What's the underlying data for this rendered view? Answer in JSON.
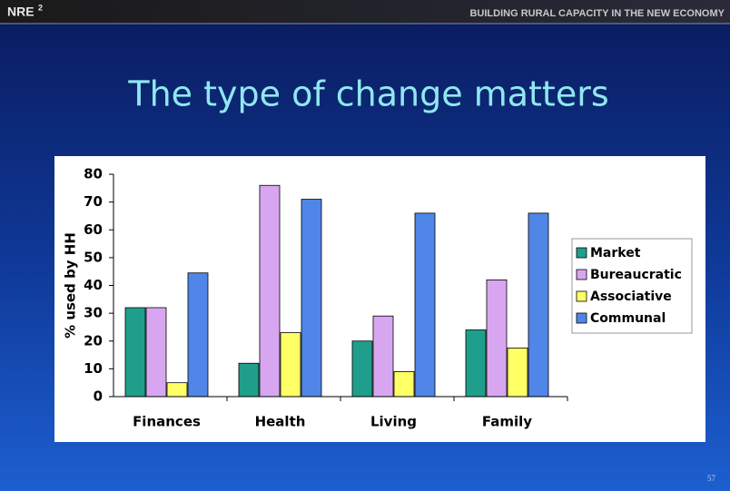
{
  "header": {
    "logo": "NRE",
    "logo_sup": "2",
    "tagline": "BUILDING RURAL CAPACITY IN THE NEW ECONOMY"
  },
  "title": "The type of change matters",
  "page_number": "57",
  "chart_data": {
    "type": "bar",
    "ylabel": "% used by HH",
    "categories": [
      "Finances",
      "Health",
      "Living",
      "Family"
    ],
    "series": [
      {
        "name": "Market",
        "color": "#1f9e8c",
        "values": [
          32,
          12,
          20,
          24
        ]
      },
      {
        "name": "Bureaucratic",
        "color": "#d8a6f0",
        "values": [
          32,
          76,
          29,
          42
        ]
      },
      {
        "name": "Associative",
        "color": "#ffff66",
        "values": [
          5,
          23,
          9,
          17.5
        ]
      },
      {
        "name": "Communal",
        "color": "#4f86e8",
        "values": [
          44.5,
          71,
          66,
          66
        ]
      }
    ],
    "ylim": [
      0,
      80
    ],
    "yticks": [
      0,
      10,
      20,
      30,
      40,
      50,
      60,
      70,
      80
    ],
    "grid": false,
    "legend": "right"
  }
}
